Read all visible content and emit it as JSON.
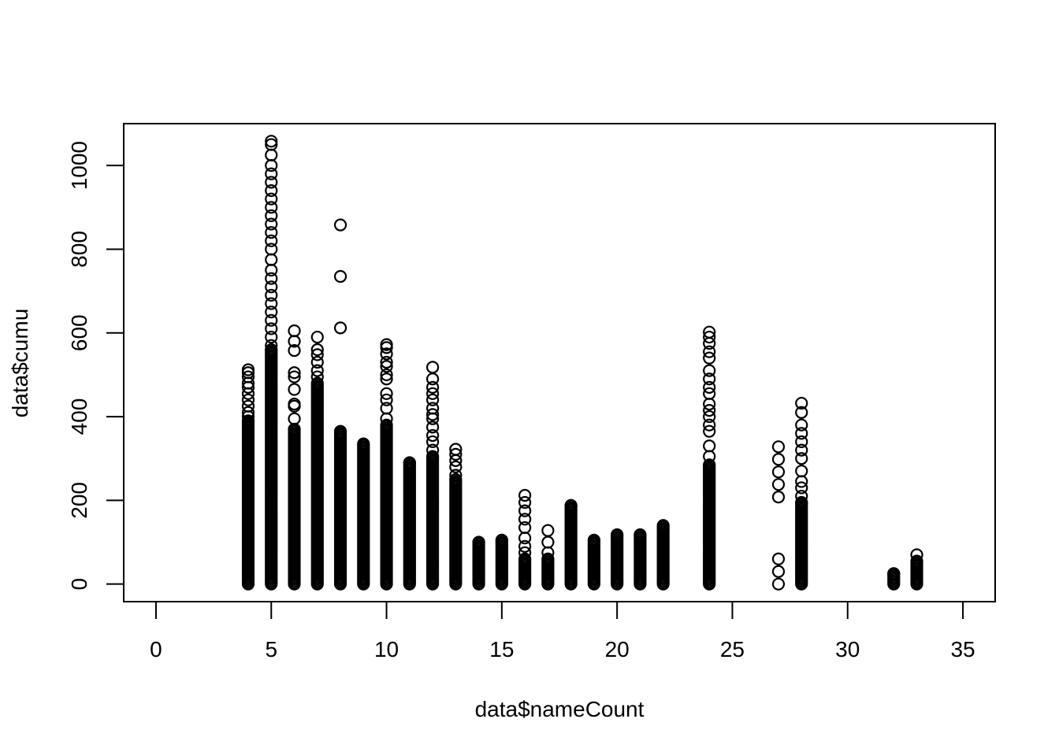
{
  "chart_data": {
    "type": "scatter",
    "title": "",
    "xlabel": "data$nameCount",
    "ylabel": "data$cumu",
    "xlim": [
      -1.4,
      36.4
    ],
    "ylim": [
      -42,
      1100
    ],
    "x_ticks": [
      0,
      5,
      10,
      15,
      20,
      25,
      30,
      35
    ],
    "y_ticks": [
      0,
      200,
      400,
      600,
      800,
      1000
    ],
    "grid": false,
    "legend": "none",
    "marker": "open-circle",
    "columns": [
      {
        "x": 4,
        "max": 390,
        "outliers": [
          400,
          410,
          425,
          440,
          455,
          470,
          480,
          495,
          505,
          512
        ]
      },
      {
        "x": 5,
        "max": 560,
        "outliers": [
          570,
          590,
          610,
          630,
          650,
          670,
          690,
          710,
          730,
          750,
          775,
          800,
          820,
          840,
          860,
          880,
          900,
          920,
          940,
          960,
          980,
          1000,
          1025,
          1050,
          1058
        ]
      },
      {
        "x": 6,
        "max": 370,
        "outliers": [
          395,
          425,
          430,
          465,
          495,
          505,
          558,
          580,
          605
        ]
      },
      {
        "x": 7,
        "max": 480,
        "outliers": [
          495,
          510,
          530,
          548,
          560,
          590
        ]
      },
      {
        "x": 8,
        "max": 365,
        "outliers": [
          612,
          735,
          858
        ]
      },
      {
        "x": 9,
        "max": 335,
        "outliers": []
      },
      {
        "x": 10,
        "max": 380,
        "outliers": [
          395,
          420,
          440,
          455,
          490,
          500,
          520,
          530,
          550,
          565,
          572
        ]
      },
      {
        "x": 11,
        "max": 290,
        "outliers": []
      },
      {
        "x": 12,
        "max": 305,
        "outliers": [
          320,
          340,
          355,
          375,
          395,
          405,
          420,
          440,
          455,
          470,
          490,
          518
        ]
      },
      {
        "x": 13,
        "max": 250,
        "outliers": [
          260,
          280,
          295,
          310,
          322
        ]
      },
      {
        "x": 14,
        "max": 100,
        "outliers": []
      },
      {
        "x": 15,
        "max": 105,
        "outliers": []
      },
      {
        "x": 16,
        "max": 60,
        "outliers": [
          75,
          90,
          110,
          135,
          155,
          175,
          195,
          212
        ]
      },
      {
        "x": 17,
        "max": 60,
        "outliers": [
          75,
          100,
          128
        ]
      },
      {
        "x": 18,
        "max": 188,
        "outliers": []
      },
      {
        "x": 19,
        "max": 105,
        "outliers": []
      },
      {
        "x": 20,
        "max": 118,
        "outliers": []
      },
      {
        "x": 21,
        "max": 118,
        "outliers": []
      },
      {
        "x": 22,
        "max": 140,
        "outliers": []
      },
      {
        "x": 24,
        "max": 285,
        "outliers": [
          305,
          330,
          365,
          380,
          400,
          415,
          430,
          455,
          470,
          490,
          510,
          540,
          555,
          575,
          590,
          602
        ]
      },
      {
        "x": 27,
        "max": 0,
        "outliers": [
          0,
          30,
          60,
          208,
          238,
          268,
          298,
          328
        ]
      },
      {
        "x": 28,
        "max": 195,
        "outliers": [
          210,
          230,
          245,
          270,
          300,
          320,
          340,
          360,
          380,
          410,
          432
        ]
      },
      {
        "x": 32,
        "max": 25,
        "outliers": []
      },
      {
        "x": 33,
        "max": 55,
        "outliers": [
          70
        ]
      }
    ]
  }
}
